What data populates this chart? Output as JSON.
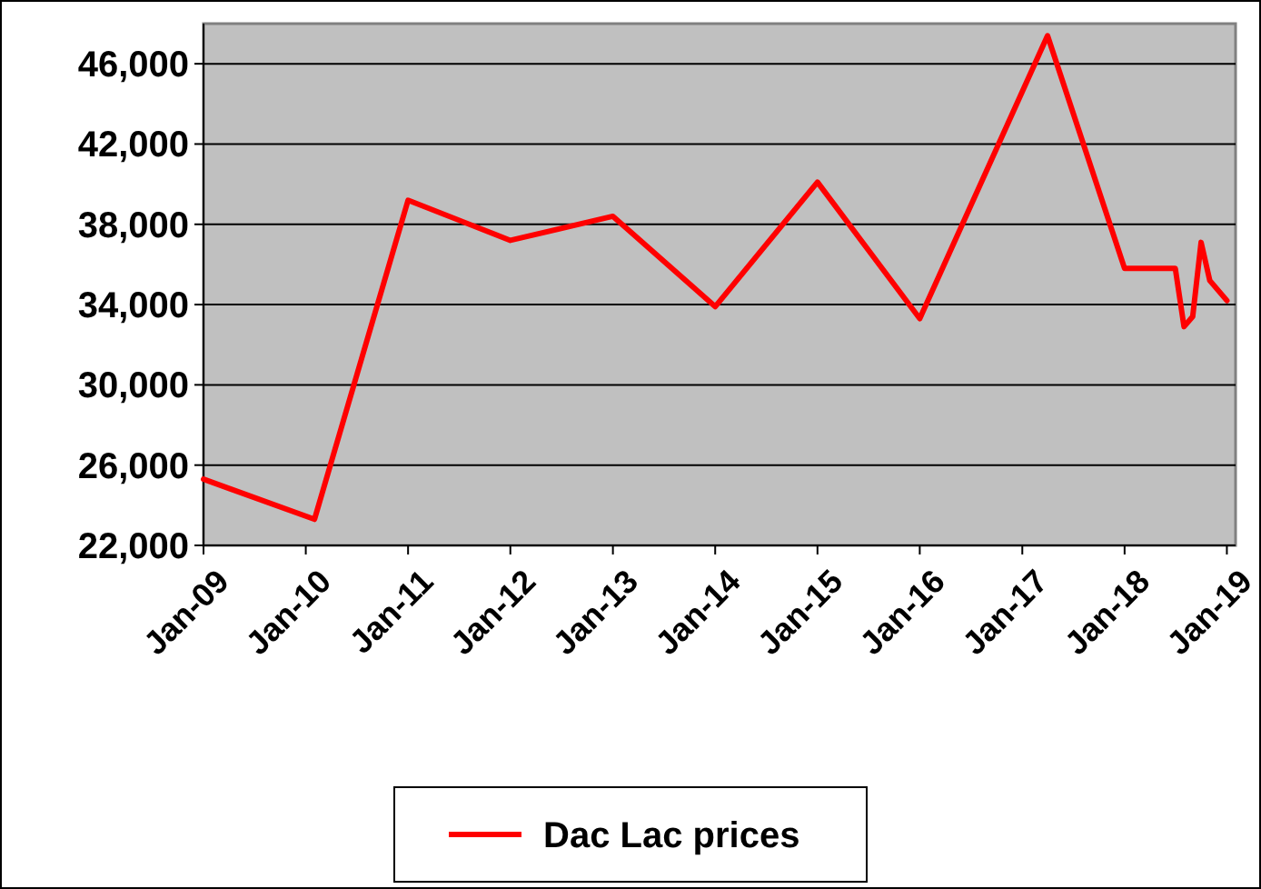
{
  "chart_data": {
    "type": "line",
    "x": [
      "2009-01",
      "2010-02",
      "2011-01",
      "2012-01",
      "2013-01",
      "2014-01",
      "2015-01",
      "2016-01",
      "2017-04",
      "2018-01",
      "2018-07",
      "2018-08",
      "2018-09",
      "2018-10",
      "2018-11",
      "2019-01"
    ],
    "series": [
      {
        "name": "Dac Lac prices",
        "color": "#ff0000",
        "values": [
          25300,
          23300,
          39200,
          37200,
          38400,
          33900,
          40100,
          33300,
          47400,
          35800,
          35800,
          32900,
          33400,
          37100,
          35200,
          34200
        ]
      }
    ],
    "xlim": [
      "2009-01",
      "2019-02"
    ],
    "xticks": [
      {
        "value": "2009-01",
        "label": "Jan-09"
      },
      {
        "value": "2010-01",
        "label": "Jan-10"
      },
      {
        "value": "2011-01",
        "label": "Jan-11"
      },
      {
        "value": "2012-01",
        "label": "Jan-12"
      },
      {
        "value": "2013-01",
        "label": "Jan-13"
      },
      {
        "value": "2014-01",
        "label": "Jan-14"
      },
      {
        "value": "2015-01",
        "label": "Jan-15"
      },
      {
        "value": "2016-01",
        "label": "Jan-16"
      },
      {
        "value": "2017-01",
        "label": "Jan-17"
      },
      {
        "value": "2018-01",
        "label": "Jan-18"
      },
      {
        "value": "2019-01",
        "label": "Jan-19"
      }
    ],
    "ylim": [
      22000,
      48000
    ],
    "yticks": [
      {
        "value": 22000,
        "label": "22,000"
      },
      {
        "value": 26000,
        "label": "26,000"
      },
      {
        "value": 30000,
        "label": "30,000"
      },
      {
        "value": 34000,
        "label": "34,000"
      },
      {
        "value": 38000,
        "label": "38,000"
      },
      {
        "value": 42000,
        "label": "42,000"
      },
      {
        "value": 46000,
        "label": "46,000"
      }
    ],
    "grid": "y",
    "legend": "bottom",
    "marker": "none",
    "line_style": "solid"
  }
}
